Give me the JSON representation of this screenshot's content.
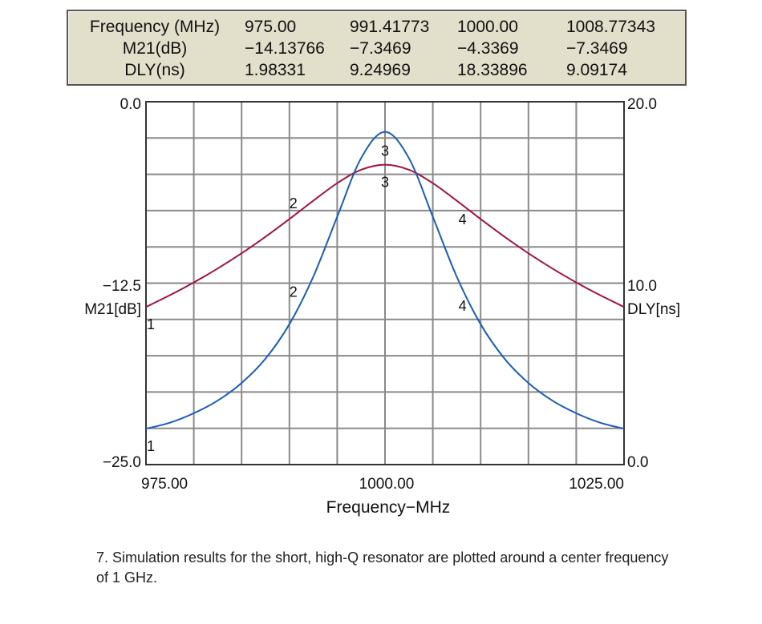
{
  "marker_table": {
    "rows": [
      {
        "label": "Frequency (MHz)",
        "values": [
          "975.00",
          "991.41773",
          "1000.00",
          "1008.77343"
        ]
      },
      {
        "label": "M21(dB)",
        "values": [
          "−14.13766",
          "−7.3469",
          "−4.3369",
          "−7.3469"
        ]
      },
      {
        "label": "DLY(ns)",
        "values": [
          "1.98331",
          "9.24969",
          "18.33896",
          "9.09174"
        ]
      }
    ]
  },
  "chart_data": {
    "type": "line",
    "xlabel": "Frequency−MHz",
    "xlim": [
      975,
      1025
    ],
    "x_ticks": [
      "975.00",
      "1000.00",
      "1025.00"
    ],
    "grid": true,
    "grid_divisions": {
      "x": 10,
      "y": 10
    },
    "left_axis": {
      "label": "M21[dB]",
      "ylim": [
        -25,
        0
      ],
      "ticks": [
        "0.0",
        "−12.5",
        "−25.0"
      ],
      "color": "#c0406e"
    },
    "right_axis": {
      "label": "DLY[ns]",
      "ylim": [
        0,
        20
      ],
      "ticks": [
        "20.0",
        "10.0",
        "0.0"
      ],
      "color": "#1f6fc4"
    },
    "x": [
      975,
      977.5,
      980,
      982.5,
      985,
      987.5,
      990,
      992.5,
      995,
      997.5,
      1000,
      1002.5,
      1005,
      1007.5,
      1010,
      1012.5,
      1015,
      1017.5,
      1020,
      1022.5,
      1025
    ],
    "series": [
      {
        "name": "M21[dB]",
        "axis": "left",
        "color": "#a3143e",
        "values": [
          -14.14,
          -13.33,
          -12.45,
          -11.49,
          -10.44,
          -9.3,
          -8.08,
          -6.82,
          -5.61,
          -4.69,
          -4.34,
          -4.69,
          -5.61,
          -6.82,
          -8.08,
          -9.3,
          -10.44,
          -11.49,
          -12.45,
          -13.33,
          -14.14
        ]
      },
      {
        "name": "DLY[ns]",
        "axis": "right",
        "color": "#1a5cc0",
        "values": [
          1.98,
          2.31,
          2.83,
          3.53,
          4.5,
          5.84,
          7.74,
          10.36,
          13.66,
          16.89,
          18.34,
          16.89,
          13.66,
          10.36,
          7.74,
          5.84,
          4.5,
          3.53,
          2.83,
          2.31,
          1.98
        ]
      }
    ],
    "markers": [
      {
        "label": "1",
        "x": 975.0,
        "m21": -14.13766,
        "dly": 1.98331
      },
      {
        "label": "2",
        "x": 991.41773,
        "m21": -7.3469,
        "dly": 9.24969
      },
      {
        "label": "3",
        "x": 1000.0,
        "m21": -4.3369,
        "dly": 18.33896
      },
      {
        "label": "4",
        "x": 1008.77343,
        "m21": -7.3469,
        "dly": 9.09174
      }
    ]
  },
  "caption": "7. Simulation results for the short, high-Q resonator are plotted around a center frequency of 1 GHz."
}
